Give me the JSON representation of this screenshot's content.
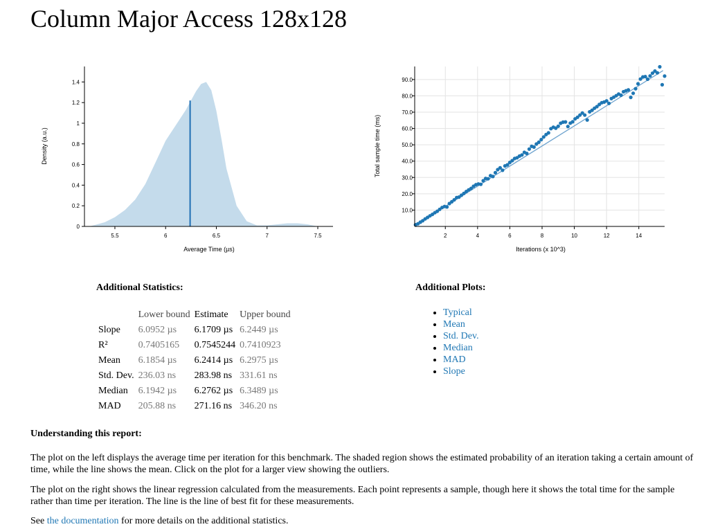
{
  "page": {
    "title": "Column Major Access 128x128"
  },
  "pdf_plot": {
    "ylabel": "Density (a.u.)",
    "xlabel": "Average Time (µs)",
    "yticks": [
      "0",
      "0.2",
      "0.4",
      "0.6",
      "0.8",
      "1",
      "1.2",
      "1.4"
    ],
    "xticks": [
      "5.5",
      "6",
      "6.5",
      "7",
      "7.5"
    ]
  },
  "regression_plot": {
    "ylabel": "Total sample time (ms)",
    "xlabel": "Iterations (x 10^3)",
    "yticks": [
      "10.0",
      "20.0",
      "30.0",
      "40.0",
      "50.0",
      "60.0",
      "70.0",
      "80.0",
      "90.0"
    ],
    "xticks": [
      "2",
      "4",
      "6",
      "8",
      "10",
      "12",
      "14"
    ]
  },
  "chart_data": [
    {
      "type": "area",
      "xlabel": "Average Time (µs)",
      "ylabel": "Density (a.u.)",
      "xlim": [
        5.2,
        7.65
      ],
      "ylim": [
        0,
        1.55
      ],
      "x": [
        5.25,
        5.4,
        5.5,
        5.6,
        5.7,
        5.8,
        5.9,
        6.0,
        6.1,
        6.2,
        6.3,
        6.35,
        6.4,
        6.45,
        6.5,
        6.55,
        6.6,
        6.7,
        6.8,
        6.9,
        7.0,
        7.1,
        7.2,
        7.3,
        7.4,
        7.5
      ],
      "y": [
        0.0,
        0.04,
        0.09,
        0.16,
        0.26,
        0.41,
        0.62,
        0.83,
        0.98,
        1.13,
        1.31,
        1.38,
        1.4,
        1.32,
        1.12,
        0.85,
        0.56,
        0.2,
        0.05,
        0.01,
        0.01,
        0.02,
        0.03,
        0.03,
        0.02,
        0.0
      ],
      "mean": 6.2414,
      "mean_density": 1.22
    },
    {
      "type": "scatter",
      "xlabel": "Iterations (x 10^3)",
      "ylabel": "Total sample time (ms)",
      "xlim": [
        0.1,
        15.6
      ],
      "ylim": [
        0,
        98
      ],
      "fit": {
        "x": [
          0.15,
          15.5
        ],
        "y": [
          0.9,
          95.5
        ]
      },
      "x": [
        0.15,
        0.3,
        0.45,
        0.6,
        0.75,
        0.9,
        1.05,
        1.2,
        1.35,
        1.5,
        1.65,
        1.8,
        1.95,
        2.1,
        2.25,
        2.4,
        2.55,
        2.7,
        2.85,
        3.0,
        3.15,
        3.3,
        3.45,
        3.6,
        3.75,
        3.9,
        4.05,
        4.2,
        4.35,
        4.5,
        4.65,
        4.8,
        4.95,
        5.1,
        5.25,
        5.4,
        5.55,
        5.7,
        5.85,
        6.0,
        6.15,
        6.3,
        6.45,
        6.6,
        6.75,
        6.9,
        7.05,
        7.2,
        7.35,
        7.5,
        7.65,
        7.8,
        7.95,
        8.1,
        8.25,
        8.4,
        8.55,
        8.7,
        8.85,
        9.0,
        9.15,
        9.3,
        9.45,
        9.6,
        9.75,
        9.9,
        10.05,
        10.2,
        10.35,
        10.5,
        10.65,
        10.8,
        10.95,
        11.1,
        11.25,
        11.4,
        11.55,
        11.7,
        11.85,
        12.0,
        12.15,
        12.3,
        12.45,
        12.6,
        12.75,
        12.9,
        13.05,
        13.2,
        13.35,
        13.5,
        13.65,
        13.8,
        13.95,
        14.1,
        14.25,
        14.4,
        14.55,
        14.7,
        14.85,
        15.0,
        15.15,
        15.3,
        15.45,
        15.6
      ],
      "y": [
        1.0,
        1.6,
        2.6,
        3.5,
        4.6,
        5.5,
        6.5,
        7.4,
        8.4,
        9.3,
        10.5,
        11.6,
        12.2,
        11.9,
        14.0,
        15.1,
        16.3,
        17.7,
        18.0,
        19.1,
        20.2,
        21.4,
        22.4,
        23.3,
        24.6,
        25.6,
        26.0,
        25.8,
        28.0,
        29.4,
        29.2,
        31.1,
        30.6,
        32.9,
        34.8,
        35.9,
        34.4,
        37.1,
        37.7,
        39.2,
        40.3,
        41.6,
        42.1,
        43.1,
        43.8,
        45.4,
        44.7,
        47.4,
        49.1,
        48.6,
        50.5,
        51.6,
        53.2,
        54.8,
        56.3,
        57.3,
        59.9,
        60.8,
        60.2,
        61.4,
        63.2,
        63.9,
        64.0,
        61.2,
        63.3,
        64.1,
        65.9,
        66.9,
        68.2,
        69.5,
        68.2,
        65.2,
        70.2,
        71.2,
        72.4,
        73.4,
        74.7,
        75.8,
        76.2,
        76.9,
        75.4,
        78.3,
        79.2,
        80.1,
        81.1,
        80.4,
        82.5,
        83.1,
        83.6,
        79.1,
        81.6,
        84.4,
        87.4,
        90.3,
        91.6,
        91.8,
        90.2,
        92.2,
        93.9,
        95.2,
        94.1,
        97.8,
        86.8,
        92.1
      ]
    }
  ],
  "additional_statistics": {
    "title": "Additional Statistics:",
    "headers": [
      "",
      "Lower bound",
      "Estimate",
      "Upper bound"
    ],
    "rows": [
      {
        "label": "Slope",
        "lower": "6.0952 µs",
        "estimate": "6.1709 µs",
        "upper": "6.2449 µs"
      },
      {
        "label": "R²",
        "lower": "0.7405165",
        "estimate": "0.7545244",
        "upper": "0.7410923"
      },
      {
        "label": "Mean",
        "lower": "6.1854 µs",
        "estimate": "6.2414 µs",
        "upper": "6.2975 µs"
      },
      {
        "label": "Std. Dev.",
        "lower": "236.03 ns",
        "estimate": "283.98 ns",
        "upper": "331.61 ns"
      },
      {
        "label": "Median",
        "lower": "6.1942 µs",
        "estimate": "6.2762 µs",
        "upper": "6.3489 µs"
      },
      {
        "label": "MAD",
        "lower": "205.88 ns",
        "estimate": "271.16 ns",
        "upper": "346.20 ns"
      }
    ]
  },
  "additional_plots": {
    "title": "Additional Plots:",
    "links": [
      "Typical",
      "Mean",
      "Std. Dev.",
      "Median",
      "MAD",
      "Slope"
    ]
  },
  "understanding": {
    "title": "Understanding this report:",
    "p1": "The plot on the left displays the average time per iteration for this benchmark. The shaded region shows the estimated probability of an iteration taking a certain amount of time, while the line shows the mean. Click on the plot for a larger view showing the outliers.",
    "p2": "The plot on the right shows the linear regression calculated from the measurements. Each point represents a sample, though here it shows the total time for the sample rather than time per iteration. The line is the line of best fit for these measurements.",
    "p3_before": "See ",
    "p3_link": "the documentation",
    "p3_after": " for more details on the additional statistics."
  },
  "colors": {
    "fill": "#c4dbeb",
    "accent": "#1f77b4",
    "mean_line": "#1f6fb4"
  }
}
